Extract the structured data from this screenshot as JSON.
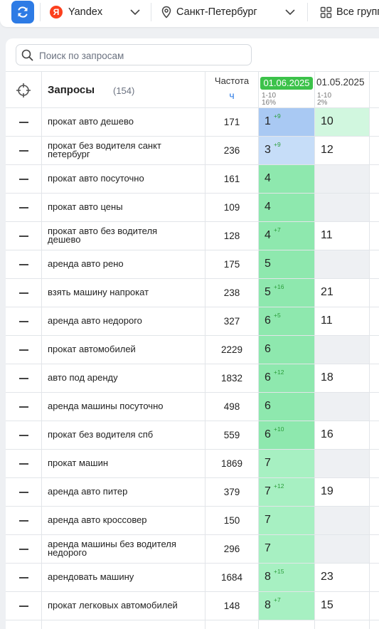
{
  "toolbar": {
    "engine": "Yandex",
    "engine_logo_letter": "Я",
    "region": "Санкт-Петербург",
    "groups": "Все групп"
  },
  "search": {
    "placeholder": "Поиск по запросам"
  },
  "table": {
    "title": "Запросы",
    "count": "(154)",
    "frequency_header": "Частота",
    "frequency_sub": "ч",
    "dates": [
      {
        "date": "01.06.2025",
        "range": "1-10",
        "percent": "16%"
      },
      {
        "date": "01.05.2025",
        "range": "1-10",
        "percent": "2%"
      }
    ],
    "rows": [
      {
        "query": "прокат авто дешево",
        "freq": "171",
        "pos1": "1",
        "delta": "+9",
        "pos2": "10"
      },
      {
        "query": "прокат без водителя санкт петербург",
        "freq": "236",
        "pos1": "3",
        "delta": "+9",
        "pos2": "12"
      },
      {
        "query": "прокат авто посуточно",
        "freq": "161",
        "pos1": "4",
        "delta": "",
        "pos2": ""
      },
      {
        "query": "прокат авто цены",
        "freq": "109",
        "pos1": "4",
        "delta": "",
        "pos2": ""
      },
      {
        "query": "прокат авто без водителя дешево",
        "freq": "128",
        "pos1": "4",
        "delta": "+7",
        "pos2": "11"
      },
      {
        "query": "аренда авто рено",
        "freq": "175",
        "pos1": "5",
        "delta": "",
        "pos2": ""
      },
      {
        "query": "взять машину напрокат",
        "freq": "238",
        "pos1": "5",
        "delta": "+16",
        "pos2": "21"
      },
      {
        "query": "аренда авто недорого",
        "freq": "327",
        "pos1": "6",
        "delta": "+5",
        "pos2": "11"
      },
      {
        "query": "прокат автомобилей",
        "freq": "2229",
        "pos1": "6",
        "delta": "",
        "pos2": ""
      },
      {
        "query": "авто под аренду",
        "freq": "1832",
        "pos1": "6",
        "delta": "+12",
        "pos2": "18"
      },
      {
        "query": "аренда машины посуточно",
        "freq": "498",
        "pos1": "6",
        "delta": "",
        "pos2": ""
      },
      {
        "query": "прокат без водителя спб",
        "freq": "559",
        "pos1": "6",
        "delta": "+10",
        "pos2": "16"
      },
      {
        "query": "прокат машин",
        "freq": "1869",
        "pos1": "7",
        "delta": "",
        "pos2": ""
      },
      {
        "query": "аренда авто питер",
        "freq": "379",
        "pos1": "7",
        "delta": "+12",
        "pos2": "19"
      },
      {
        "query": "аренда авто кроссовер",
        "freq": "150",
        "pos1": "7",
        "delta": "",
        "pos2": ""
      },
      {
        "query": "аренда машины без водителя недорого",
        "freq": "296",
        "pos1": "7",
        "delta": "",
        "pos2": ""
      },
      {
        "query": "арендовать машину",
        "freq": "1684",
        "pos1": "8",
        "delta": "+15",
        "pos2": "23"
      },
      {
        "query": "прокат легковых автомобилей",
        "freq": "148",
        "pos1": "8",
        "delta": "+7",
        "pos2": "15"
      }
    ]
  },
  "colors": {
    "accent": "#2d7be5",
    "date_badge": "#3cc24a",
    "pos_top1": "#a9c9f3",
    "pos_top3": "#c6ddf8",
    "pos_green": "#8ee8ae",
    "pos_green_light": "#a7f0c2",
    "pos2_light": "#d1f7df",
    "empty_cell": "#eef0f3",
    "delta": "#2a9d3a"
  },
  "icons": {
    "refresh": "refresh-icon",
    "location": "map-pin-icon",
    "groups": "grid-icon",
    "search": "search-icon",
    "target": "crosshair-icon",
    "chevron": "chevron-down-icon"
  }
}
